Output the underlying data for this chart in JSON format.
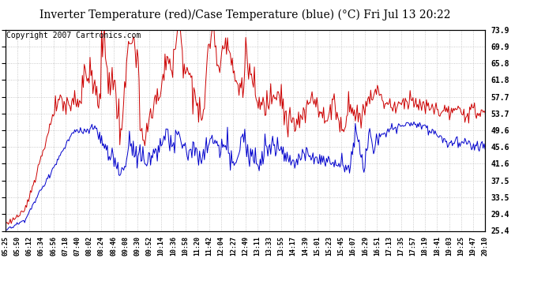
{
  "title": "Inverter Temperature (red)/Case Temperature (blue) (°C) Fri Jul 13 20:22",
  "copyright": "Copyright 2007 Cartronics.com",
  "ylim": [
    25.4,
    73.9
  ],
  "yticks": [
    25.4,
    29.4,
    33.5,
    37.5,
    41.6,
    45.6,
    49.6,
    53.7,
    57.7,
    61.8,
    65.8,
    69.9,
    73.9
  ],
  "bg_color": "#ffffff",
  "plot_bg_color": "#ffffff",
  "grid_color": "#bbbbbb",
  "red_color": "#cc0000",
  "blue_color": "#0000cc",
  "x_labels": [
    "05:25",
    "05:50",
    "06:12",
    "06:34",
    "06:56",
    "07:18",
    "07:40",
    "08:02",
    "08:24",
    "08:46",
    "09:08",
    "09:30",
    "09:52",
    "10:14",
    "10:36",
    "10:58",
    "11:20",
    "11:42",
    "12:04",
    "12:27",
    "12:49",
    "13:11",
    "13:33",
    "13:55",
    "14:17",
    "14:39",
    "15:01",
    "15:23",
    "15:45",
    "16:07",
    "16:29",
    "16:51",
    "17:13",
    "17:35",
    "17:57",
    "18:19",
    "18:41",
    "19:03",
    "19:25",
    "19:47",
    "20:10"
  ],
  "title_fontsize": 10,
  "tick_fontsize": 7,
  "copyright_fontsize": 7
}
